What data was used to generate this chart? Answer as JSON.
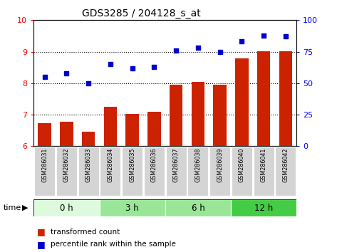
{
  "title": "GDS3285 / 204128_s_at",
  "samples": [
    "GSM286031",
    "GSM286032",
    "GSM286033",
    "GSM286034",
    "GSM286035",
    "GSM286036",
    "GSM286037",
    "GSM286038",
    "GSM286039",
    "GSM286040",
    "GSM286041",
    "GSM286042"
  ],
  "bar_values": [
    6.72,
    6.77,
    6.45,
    7.25,
    7.02,
    7.1,
    7.95,
    8.05,
    7.95,
    8.78,
    9.02,
    9.02
  ],
  "scatter_percentiles": [
    55,
    58,
    50,
    65,
    62,
    63,
    76,
    78,
    75,
    83,
    88,
    87
  ],
  "bar_color": "#cc2200",
  "scatter_color": "#0000cc",
  "ylim_left": [
    6,
    10
  ],
  "ylim_right": [
    0,
    100
  ],
  "yticks_left": [
    6,
    7,
    8,
    9,
    10
  ],
  "yticks_right": [
    0,
    25,
    50,
    75,
    100
  ],
  "time_groups": [
    {
      "label": "0 h",
      "start": 0,
      "end": 3,
      "color": "#ddfadd"
    },
    {
      "label": "3 h",
      "start": 3,
      "end": 6,
      "color": "#99e699"
    },
    {
      "label": "6 h",
      "start": 6,
      "end": 9,
      "color": "#99e699"
    },
    {
      "label": "12 h",
      "start": 9,
      "end": 12,
      "color": "#44cc44"
    }
  ],
  "legend_bar_label": "transformed count",
  "legend_scatter_label": "percentile rank within the sample",
  "time_label": "time",
  "background_color": "#ffffff",
  "sample_box_color": "#d4d4d4"
}
